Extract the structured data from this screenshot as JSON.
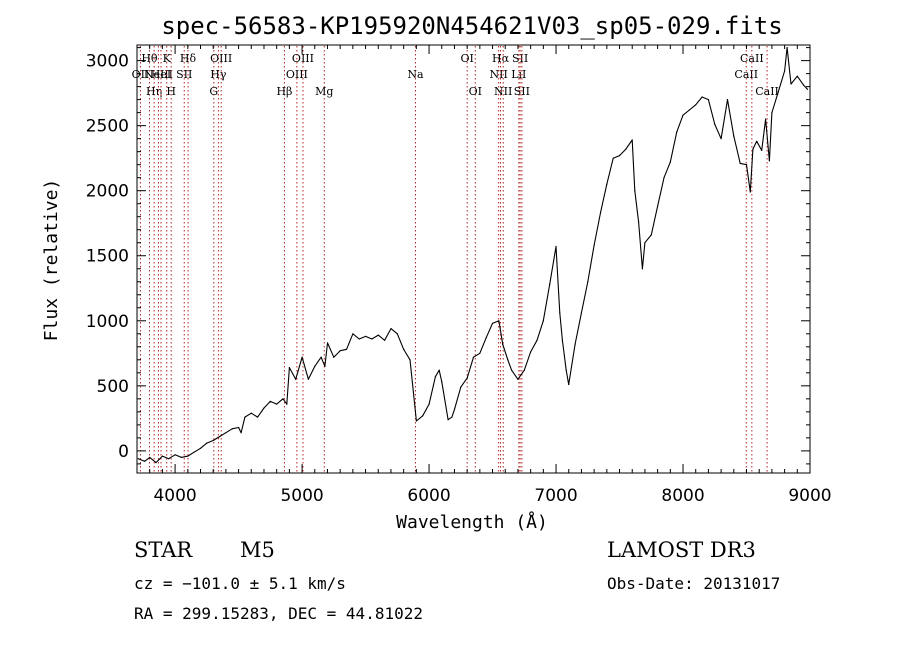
{
  "chart_data": {
    "type": "line",
    "title": "spec-56583-KP195920N454621V03_sp05-029.fits",
    "xlabel": "Wavelength (Å)",
    "ylabel": "Flux (relative)",
    "xlim": [
      3700,
      9000
    ],
    "ylim": [
      -170,
      3120
    ],
    "xticks": [
      4000,
      5000,
      6000,
      7000,
      8000,
      9000
    ],
    "xtick_labels": [
      "4000",
      "5000",
      "6000",
      "7000",
      "8000",
      "9000"
    ],
    "yticks": [
      0,
      500,
      1000,
      1500,
      2000,
      2500,
      3000
    ],
    "ytick_labels": [
      "0",
      "500",
      "1000",
      "1500",
      "2000",
      "2500",
      "3000"
    ],
    "series": [
      {
        "name": "spectrum",
        "x": [
          3710,
          3760,
          3800,
          3850,
          3900,
          3950,
          4000,
          4050,
          4100,
          4150,
          4200,
          4250,
          4300,
          4350,
          4400,
          4450,
          4500,
          4520,
          4550,
          4600,
          4650,
          4700,
          4750,
          4800,
          4850,
          4880,
          4900,
          4950,
          5000,
          5050,
          5100,
          5150,
          5180,
          5200,
          5250,
          5300,
          5350,
          5400,
          5450,
          5500,
          5550,
          5600,
          5650,
          5700,
          5750,
          5800,
          5850,
          5900,
          5950,
          6000,
          6050,
          6080,
          6100,
          6150,
          6180,
          6200,
          6250,
          6300,
          6350,
          6400,
          6450,
          6500,
          6550,
          6580,
          6620,
          6650,
          6700,
          6750,
          6800,
          6850,
          6900,
          6950,
          7000,
          7030,
          7050,
          7080,
          7100,
          7150,
          7200,
          7250,
          7300,
          7350,
          7400,
          7450,
          7500,
          7550,
          7600,
          7620,
          7650,
          7680,
          7700,
          7750,
          7800,
          7850,
          7900,
          7950,
          8000,
          8050,
          8100,
          8150,
          8200,
          8250,
          8300,
          8350,
          8400,
          8450,
          8500,
          8530,
          8550,
          8580,
          8620,
          8650,
          8680,
          8700,
          8750,
          8800,
          8820,
          8850,
          8900,
          8950,
          8980
        ],
        "values": [
          -60,
          -80,
          -50,
          -90,
          -40,
          -60,
          -30,
          -50,
          -40,
          -10,
          20,
          60,
          80,
          110,
          140,
          170,
          180,
          140,
          260,
          290,
          260,
          330,
          380,
          360,
          400,
          360,
          640,
          550,
          720,
          550,
          650,
          720,
          650,
          830,
          720,
          770,
          780,
          900,
          860,
          880,
          860,
          890,
          850,
          940,
          900,
          780,
          700,
          230,
          270,
          360,
          570,
          620,
          530,
          240,
          260,
          320,
          490,
          560,
          720,
          750,
          870,
          980,
          1000,
          820,
          700,
          620,
          550,
          620,
          760,
          850,
          1000,
          1280,
          1570,
          1060,
          850,
          620,
          510,
          820,
          1060,
          1300,
          1580,
          1830,
          2050,
          2250,
          2270,
          2320,
          2390,
          2000,
          1760,
          1400,
          1600,
          1660,
          1880,
          2100,
          2220,
          2450,
          2580,
          2620,
          2660,
          2720,
          2700,
          2510,
          2400,
          2700,
          2420,
          2210,
          2200,
          1990,
          2320,
          2380,
          2310,
          2550,
          2230,
          2600,
          2760,
          2920,
          3100,
          2820,
          2880,
          2810,
          2780
        ]
      }
    ],
    "lines": [
      {
        "x": 3727,
        "label": "OII",
        "row": 2
      },
      {
        "x": 3798,
        "label": "Hθ",
        "row": 1
      },
      {
        "x": 3835,
        "label": "Hη",
        "row": 3
      },
      {
        "x": 3869,
        "label": "NeIII",
        "row": 2
      },
      {
        "x": 3889,
        "label": "HeI",
        "row": 2
      },
      {
        "x": 3934,
        "label": "K",
        "row": 1
      },
      {
        "x": 3969,
        "label": "H",
        "row": 3
      },
      {
        "x": 4072,
        "label": "SII",
        "row": 2
      },
      {
        "x": 4102,
        "label": "Hδ",
        "row": 1
      },
      {
        "x": 4305,
        "label": "G",
        "row": 3
      },
      {
        "x": 4341,
        "label": "Hγ",
        "row": 2
      },
      {
        "x": 4363,
        "label": "OIII",
        "row": 1
      },
      {
        "x": 4861,
        "label": "Hβ",
        "row": 3
      },
      {
        "x": 4959,
        "label": "OIII",
        "row": 2
      },
      {
        "x": 5007,
        "label": "OIII",
        "row": 1
      },
      {
        "x": 5175,
        "label": "Mg",
        "row": 3
      },
      {
        "x": 5893,
        "label": "Na",
        "row": 2
      },
      {
        "x": 6300,
        "label": "OI",
        "row": 1
      },
      {
        "x": 6364,
        "label": "OI",
        "row": 3
      },
      {
        "x": 6548,
        "label": "NII",
        "row": 2
      },
      {
        "x": 6563,
        "label": "Hα",
        "row": 1
      },
      {
        "x": 6584,
        "label": "NII",
        "row": 3
      },
      {
        "x": 6707,
        "label": "LiI",
        "row": 2
      },
      {
        "x": 6717,
        "label": "SII",
        "row": 1
      },
      {
        "x": 6731,
        "label": "SII",
        "row": 3
      },
      {
        "x": 8498,
        "label": "CaII",
        "row": 2
      },
      {
        "x": 8542,
        "label": "CaII",
        "row": 1
      },
      {
        "x": 8662,
        "label": "CaII",
        "row": 3
      }
    ]
  },
  "info": {
    "object_class": "STAR",
    "subclass": "M5",
    "survey": "LAMOST DR3",
    "redshift": "cz = −101.0 ± 5.1 km/s",
    "obs_date": "Obs-Date: 20131017",
    "coords": "RA = 299.15283, DEC =  44.81022"
  }
}
